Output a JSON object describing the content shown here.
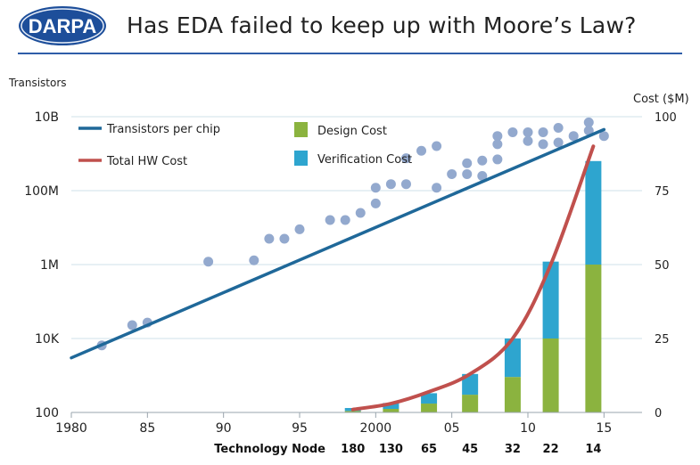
{
  "header": {
    "logo_text": "DARPA",
    "title": "Has EDA failed to keep up with Moore’s Law?"
  },
  "colors": {
    "title_rule": "#2e5da8",
    "logo_bg": "#1d4e9a",
    "transistor_line": "#1f6899",
    "scatter": "#93a9ce",
    "hw_cost_line": "#c0504d",
    "design_cost": "#8bb33f",
    "verification_cost": "#2ea5cf",
    "grid": "#cfe0ea"
  },
  "chart_data": {
    "type": "line",
    "left_axis": {
      "label": "Transistors",
      "scale": "log",
      "ylim": [
        100,
        10000000000
      ],
      "ticks": [
        {
          "value": 100,
          "label": "100"
        },
        {
          "value": 10000,
          "label": "10K"
        },
        {
          "value": 1000000,
          "label": "1M"
        },
        {
          "value": 100000000,
          "label": "100M"
        },
        {
          "value": 10000000000,
          "label": "10B"
        }
      ]
    },
    "right_axis": {
      "label": "Cost ($M)",
      "ylim": [
        0,
        100
      ],
      "ticks": [
        {
          "value": 0,
          "label": "0"
        },
        {
          "value": 25,
          "label": "25"
        },
        {
          "value": 50,
          "label": "50"
        },
        {
          "value": 75,
          "label": "75"
        },
        {
          "value": 100,
          "label": "100"
        }
      ]
    },
    "x_axis": {
      "xlim": [
        1980,
        2017.5
      ],
      "ticks": [
        {
          "value": 1980,
          "label": "1980"
        },
        {
          "value": 1985,
          "label": "85"
        },
        {
          "value": 1990,
          "label": "90"
        },
        {
          "value": 1995,
          "label": "95"
        },
        {
          "value": 2000,
          "label": "2000"
        },
        {
          "value": 2005,
          "label": "05"
        },
        {
          "value": 2010,
          "label": "10"
        },
        {
          "value": 2015,
          "label": "15"
        }
      ],
      "node_label": "Technology Node",
      "nodes": [
        {
          "x": 1998.5,
          "label": "180"
        },
        {
          "x": 2001.0,
          "label": "130"
        },
        {
          "x": 2003.5,
          "label": "65"
        },
        {
          "x": 2006.2,
          "label": "45"
        },
        {
          "x": 2009.0,
          "label": "32"
        },
        {
          "x": 2011.5,
          "label": "22"
        },
        {
          "x": 2014.3,
          "label": "14"
        }
      ]
    },
    "legend": {
      "placement": "top-left",
      "items": [
        {
          "label": "Transistors per chip",
          "kind": "line",
          "color": "#1f6899"
        },
        {
          "label": "Total HW Cost",
          "kind": "line",
          "color": "#c0504d"
        },
        {
          "label": "Design Cost",
          "kind": "bar",
          "color": "#8bb33f"
        },
        {
          "label": "Verification Cost",
          "kind": "bar",
          "color": "#2ea5cf"
        }
      ]
    },
    "transistor_trend": [
      {
        "x": 1980,
        "y": 3000
      },
      {
        "x": 2015,
        "y": 4500000000
      }
    ],
    "transistor_points": [
      [
        1982,
        6500
      ],
      [
        1984,
        23000
      ],
      [
        1985,
        27000
      ],
      [
        1989,
        1200000
      ],
      [
        1992,
        1300000
      ],
      [
        1993,
        5000000
      ],
      [
        1994,
        5000000
      ],
      [
        1995,
        9000000
      ],
      [
        1997,
        16000000
      ],
      [
        1998,
        16000000
      ],
      [
        1999,
        25000000
      ],
      [
        2000,
        45000000
      ],
      [
        2000,
        120000000
      ],
      [
        2001,
        150000000
      ],
      [
        2002,
        150000000
      ],
      [
        2002,
        750000000
      ],
      [
        2003,
        1200000000
      ],
      [
        2004,
        1600000000
      ],
      [
        2004,
        120000000
      ],
      [
        2005,
        280000000
      ],
      [
        2006,
        280000000
      ],
      [
        2006,
        550000000
      ],
      [
        2007,
        250000000
      ],
      [
        2007,
        650000000
      ],
      [
        2008,
        1800000000
      ],
      [
        2008,
        700000000
      ],
      [
        2008,
        3000000000
      ],
      [
        2009,
        3800000000
      ],
      [
        2010,
        3800000000
      ],
      [
        2010,
        2200000000
      ],
      [
        2011,
        3800000000
      ],
      [
        2011,
        1800000000
      ],
      [
        2012,
        2000000000
      ],
      [
        2012,
        5000000000
      ],
      [
        2013,
        3000000000
      ],
      [
        2014,
        7000000000
      ],
      [
        2014,
        4200000000
      ],
      [
        2015,
        3000000000
      ]
    ],
    "categories": [
      "180",
      "130",
      "65",
      "45",
      "32",
      "22",
      "14"
    ],
    "series": [
      {
        "name": "Design Cost",
        "type": "bar",
        "axis": "right",
        "x": [
          1998.5,
          2001.0,
          2003.5,
          2006.2,
          2009.0,
          2011.5,
          2014.3
        ],
        "values": [
          0.5,
          1.2,
          3,
          6,
          12,
          25,
          50
        ]
      },
      {
        "name": "Verification Cost",
        "type": "bar",
        "axis": "right",
        "x": [
          1998.5,
          2001.0,
          2003.5,
          2006.2,
          2009.0,
          2011.5,
          2014.3
        ],
        "values": [
          1.0,
          2.0,
          3.5,
          7,
          13,
          26,
          35
        ]
      },
      {
        "name": "Total HW Cost",
        "type": "line",
        "axis": "right",
        "x": [
          1998.5,
          2001.0,
          2003.5,
          2006.2,
          2009.0,
          2011.5,
          2014.3
        ],
        "values": [
          1,
          3,
          7,
          13,
          25,
          50,
          90
        ]
      }
    ]
  }
}
